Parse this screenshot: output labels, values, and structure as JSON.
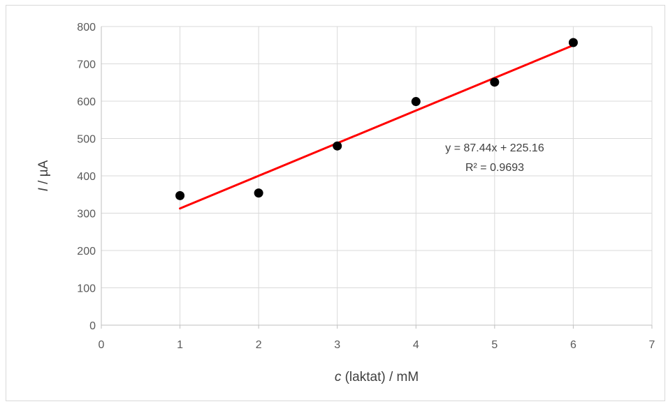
{
  "chart_data": {
    "type": "scatter",
    "title": "",
    "xlabel": {
      "var": "c",
      "rest": " (laktat) / mM"
    },
    "ylabel": {
      "var": "I",
      "rest": " / µA"
    },
    "xlim": [
      0,
      7
    ],
    "ylim": [
      0,
      800
    ],
    "xticks": [
      0,
      1,
      2,
      3,
      4,
      5,
      6,
      7
    ],
    "yticks": [
      0,
      100,
      200,
      300,
      400,
      500,
      600,
      700,
      800
    ],
    "grid": true,
    "legend": "none",
    "series": [
      {
        "x": [
          1,
          2,
          3,
          4,
          5,
          6
        ],
        "y": [
          347,
          354,
          480,
          599,
          651,
          757
        ],
        "marker_color": "#000000"
      }
    ],
    "trendline": {
      "type": "linear",
      "slope": 87.44,
      "intercept": 225.16,
      "x_range": [
        1,
        6
      ],
      "color": "#ff0000",
      "equation_text": "y = 87.44x + 225.16",
      "r2_text": "R² = 0.9693"
    },
    "colors": {
      "grid": "#d9d9d9",
      "axis": "#bfbfbf",
      "tick_text": "#595959"
    }
  }
}
